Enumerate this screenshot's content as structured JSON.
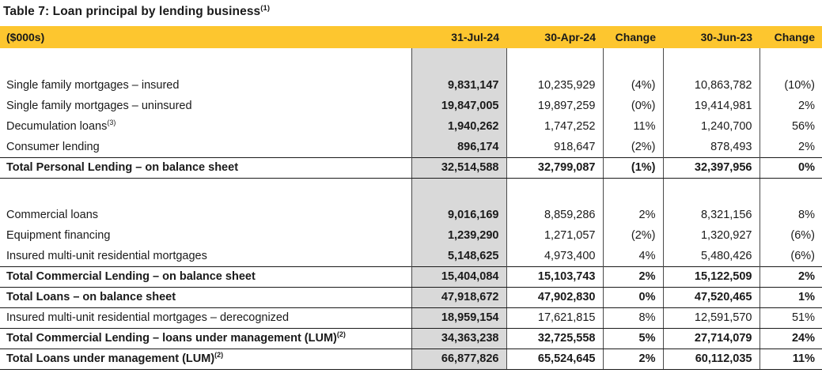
{
  "title": {
    "text": "Table 7: Loan principal by lending business",
    "superscript": "(1)"
  },
  "colors": {
    "header_bg": "#FDC62F",
    "highlight_column_bg": "#D9D9D9"
  },
  "table": {
    "unit_label": "($000s)",
    "columns": [
      "31-Jul-24",
      "30-Apr-24",
      "Change",
      "30-Jun-23",
      "Change"
    ],
    "rows": [
      {
        "type": "spacer",
        "label": "",
        "sup": "",
        "values": [
          "",
          "",
          "",
          "",
          ""
        ]
      },
      {
        "type": "item",
        "label": "Single family mortgages – insured",
        "sup": "",
        "values": [
          "9,831,147",
          "10,235,929",
          "(4%)",
          "10,863,782",
          "(10%)"
        ]
      },
      {
        "type": "item",
        "label": "Single family mortgages – uninsured",
        "sup": "",
        "values": [
          "19,847,005",
          "19,897,259",
          "(0%)",
          "19,414,981",
          "2%"
        ]
      },
      {
        "type": "item",
        "label": "Decumulation loans",
        "sup": "(3)",
        "values": [
          "1,940,262",
          "1,747,252",
          "11%",
          "1,240,700",
          "56%"
        ]
      },
      {
        "type": "item",
        "label": "Consumer lending",
        "sup": "",
        "values": [
          "896,174",
          "918,647",
          "(2%)",
          "878,493",
          "2%"
        ]
      },
      {
        "type": "total",
        "label": "Total Personal Lending – on balance sheet",
        "sup": "",
        "values": [
          "32,514,588",
          "32,799,087",
          "(1%)",
          "32,397,956",
          "0%"
        ]
      },
      {
        "type": "spacer",
        "label": "",
        "sup": "",
        "values": [
          "",
          "",
          "",
          "",
          ""
        ]
      },
      {
        "type": "item",
        "label": "Commercial loans",
        "sup": "",
        "values": [
          "9,016,169",
          "8,859,286",
          "2%",
          "8,321,156",
          "8%"
        ]
      },
      {
        "type": "item",
        "label": "Equipment financing",
        "sup": "",
        "values": [
          "1,239,290",
          "1,271,057",
          "(2%)",
          "1,320,927",
          "(6%)"
        ]
      },
      {
        "type": "item",
        "label": "Insured multi-unit residential mortgages",
        "sup": "",
        "values": [
          "5,148,625",
          "4,973,400",
          "4%",
          "5,480,426",
          "(6%)"
        ]
      },
      {
        "type": "total",
        "label": "Total Commercial Lending – on balance sheet",
        "sup": "",
        "values": [
          "15,404,084",
          "15,103,743",
          "2%",
          "15,122,509",
          "2%"
        ]
      },
      {
        "type": "total",
        "label": "Total Loans – on balance sheet",
        "sup": "",
        "values": [
          "47,918,672",
          "47,902,830",
          "0%",
          "47,520,465",
          "1%"
        ]
      },
      {
        "type": "item-bordered",
        "label": "Insured multi-unit residential mortgages – derecognized",
        "sup": "",
        "values": [
          "18,959,154",
          "17,621,815",
          "8%",
          "12,591,570",
          "51%"
        ]
      },
      {
        "type": "total",
        "label": "Total Commercial Lending – loans under management (LUM)",
        "sup": "(2)",
        "values": [
          "34,363,238",
          "32,725,558",
          "5%",
          "27,714,079",
          "24%"
        ]
      },
      {
        "type": "total",
        "label": "Total Loans under management (LUM)",
        "sup": "(2)",
        "values": [
          "66,877,826",
          "65,524,645",
          "2%",
          "60,112,035",
          "11%"
        ]
      }
    ]
  }
}
